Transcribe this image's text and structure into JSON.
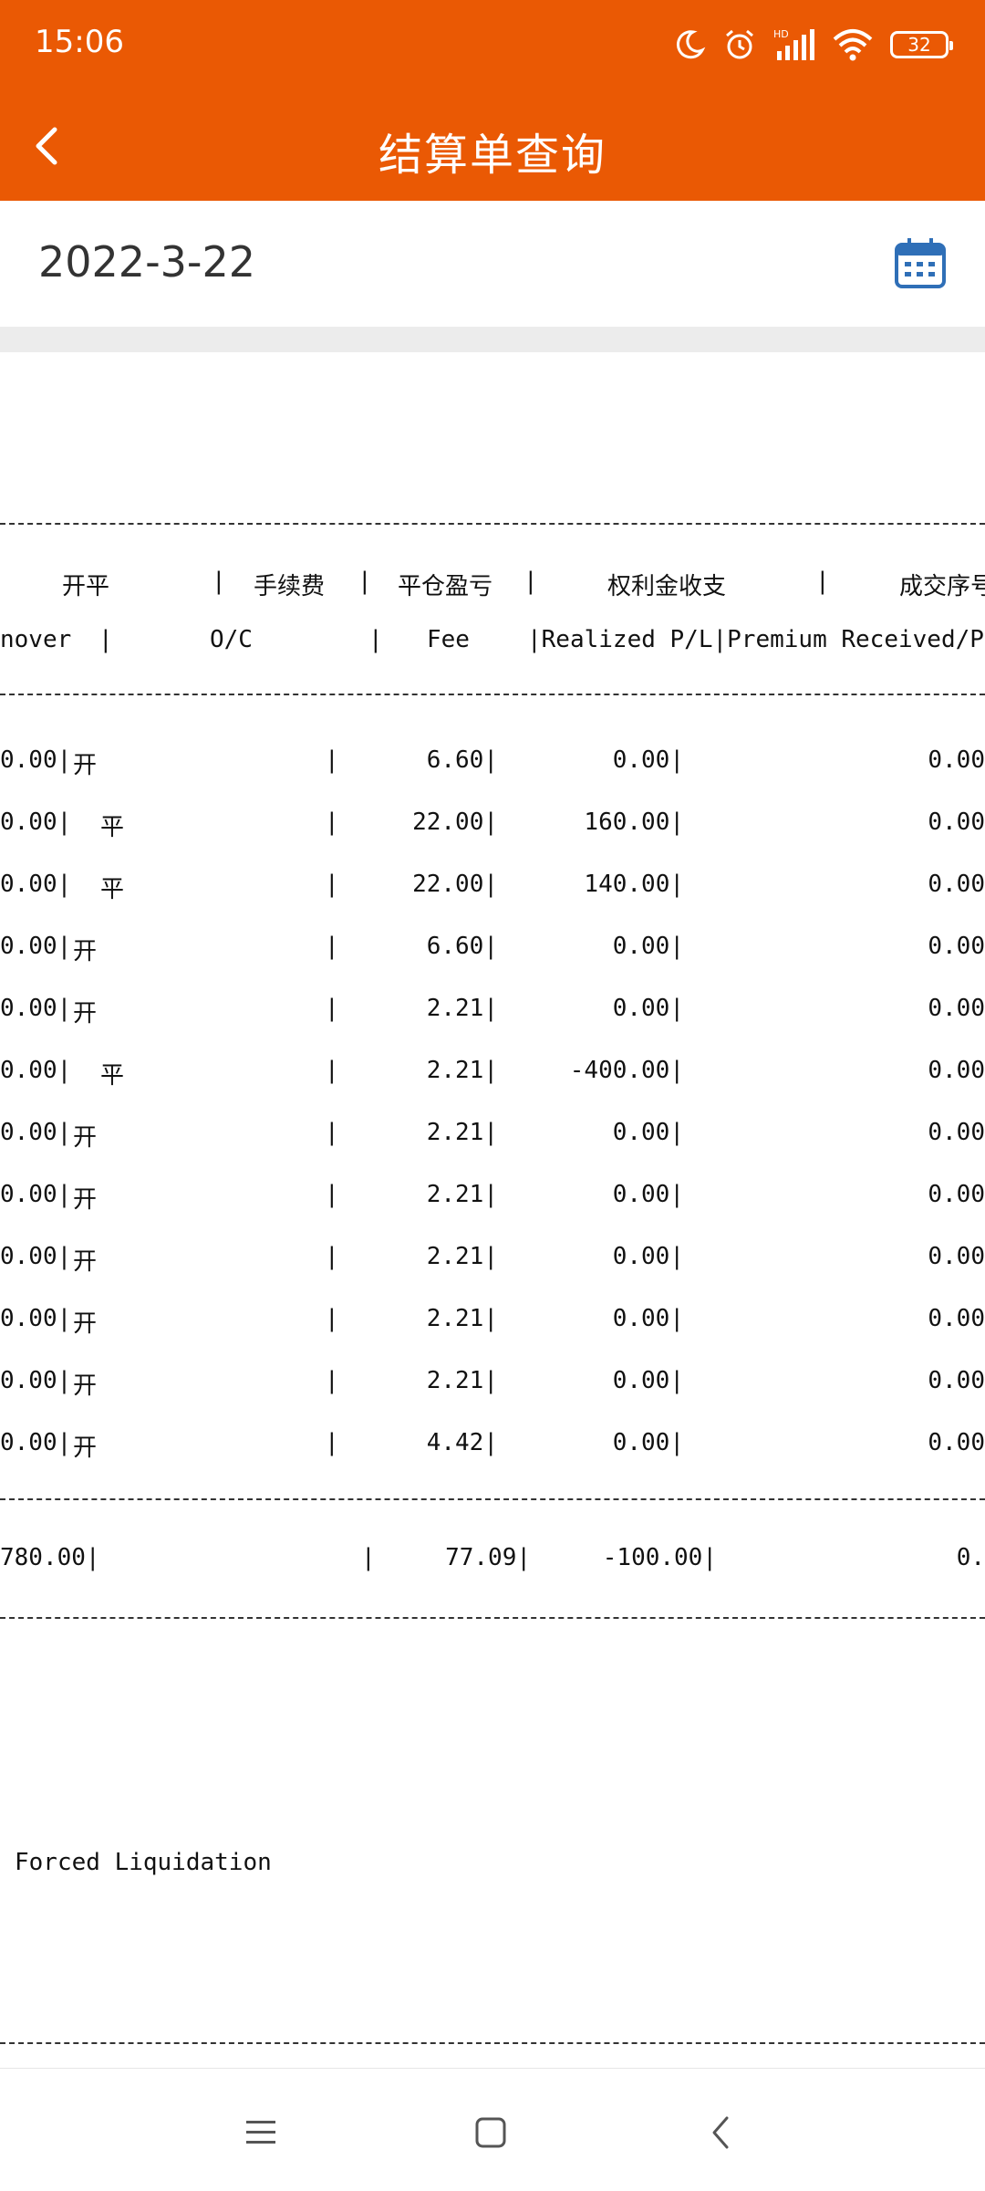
{
  "status_bar": {
    "time": "15:06",
    "battery": "32",
    "icons": [
      "moon-icon",
      "alarm-icon",
      "hd-signal-icon",
      "wifi-icon",
      "battery-icon"
    ]
  },
  "header": {
    "title": "结算单查询",
    "back_icon": "chevron-left-icon",
    "bg_color": "#ea5904"
  },
  "date_bar": {
    "date": "2022-3-22",
    "calendar_icon": "calendar-icon",
    "accent_color": "#2f6fb7"
  },
  "report": {
    "header_cn": {
      "c1": "开平",
      "s1": "|",
      "c2": "手续费",
      "s2": "|",
      "c3": "平仓盈亏",
      "s3": "|",
      "c4": "权利金收支",
      "s4": "|",
      "c5": "成交序号"
    },
    "header_en": {
      "c0": "nover",
      "s0": "|",
      "c1": "O/C",
      "s1": "|",
      "c2": "Fee",
      "c3": "|Realized P/L|Premium Received/P"
    },
    "rows": [
      {
        "turnover": "0.00|",
        "oc": "开",
        "oc_offset": false,
        "fee": "6.60|",
        "pl": "0.00|",
        "premium": "0.00"
      },
      {
        "turnover": "0.00|",
        "oc": "平",
        "oc_offset": true,
        "fee": "22.00|",
        "pl": "160.00|",
        "premium": "0.00"
      },
      {
        "turnover": "0.00|",
        "oc": "平",
        "oc_offset": true,
        "fee": "22.00|",
        "pl": "140.00|",
        "premium": "0.00"
      },
      {
        "turnover": "0.00|",
        "oc": "开",
        "oc_offset": false,
        "fee": "6.60|",
        "pl": "0.00|",
        "premium": "0.00"
      },
      {
        "turnover": "0.00|",
        "oc": "开",
        "oc_offset": false,
        "fee": "2.21|",
        "pl": "0.00|",
        "premium": "0.00"
      },
      {
        "turnover": "0.00|",
        "oc": "平",
        "oc_offset": true,
        "fee": "2.21|",
        "pl": "-400.00|",
        "premium": "0.00"
      },
      {
        "turnover": "0.00|",
        "oc": "开",
        "oc_offset": false,
        "fee": "2.21|",
        "pl": "0.00|",
        "premium": "0.00"
      },
      {
        "turnover": "0.00|",
        "oc": "开",
        "oc_offset": false,
        "fee": "2.21|",
        "pl": "0.00|",
        "premium": "0.00"
      },
      {
        "turnover": "0.00|",
        "oc": "开",
        "oc_offset": false,
        "fee": "2.21|",
        "pl": "0.00|",
        "premium": "0.00"
      },
      {
        "turnover": "0.00|",
        "oc": "开",
        "oc_offset": false,
        "fee": "2.21|",
        "pl": "0.00|",
        "premium": "0.00"
      },
      {
        "turnover": "0.00|",
        "oc": "开",
        "oc_offset": false,
        "fee": "2.21|",
        "pl": "0.00|",
        "premium": "0.00"
      },
      {
        "turnover": "0.00|",
        "oc": "开",
        "oc_offset": false,
        "fee": "4.42|",
        "pl": "0.00|",
        "premium": "0.00"
      }
    ],
    "row_sep": "|",
    "total": {
      "turnover": "780.00|",
      "sep": "|",
      "fee": "77.09|",
      "pl": "-100.00|",
      "premium": "0."
    },
    "note": "Forced Liquidation"
  },
  "nav_bar": {
    "icons": [
      "menu-icon",
      "home-square-icon",
      "back-triangle-icon"
    ]
  }
}
